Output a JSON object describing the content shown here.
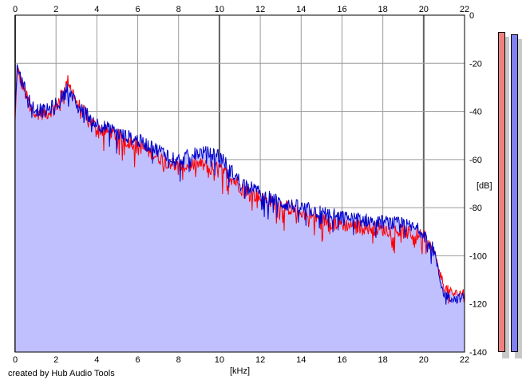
{
  "chart_data": {
    "type": "area",
    "xlabel": "[kHz]",
    "ylabel": "[dB]",
    "x_ticks": [
      0,
      2,
      4,
      6,
      8,
      10,
      12,
      14,
      16,
      18,
      20,
      22
    ],
    "y_ticks": [
      0,
      -20,
      -40,
      -60,
      -80,
      -100,
      -120,
      -140
    ],
    "xlim": [
      0,
      22
    ],
    "ylim": [
      -140,
      0
    ],
    "grid": true,
    "series": [
      {
        "color": "#ff0000",
        "x": [
          0,
          0.1,
          0.3,
          0.6,
          1.0,
          1.5,
          2.0,
          2.4,
          2.6,
          3.0,
          3.5,
          4.0,
          5.0,
          6.0,
          7.0,
          8.0,
          9.0,
          10.0,
          10.5,
          11.0,
          12.0,
          13.0,
          14.0,
          15.0,
          16.0,
          17.0,
          18.0,
          19.0,
          20.0,
          20.5,
          20.8,
          21.0,
          21.5,
          22.0
        ],
        "values": [
          -45,
          -22,
          -28,
          -35,
          -40,
          -41,
          -38,
          -31,
          -27,
          -36,
          -42,
          -47,
          -50,
          -54,
          -59,
          -63,
          -62,
          -64,
          -67,
          -71,
          -76,
          -79,
          -82,
          -85,
          -87,
          -88,
          -89,
          -90,
          -92,
          -98,
          -107,
          -113,
          -116,
          -115
        ]
      },
      {
        "color": "#0000cc",
        "x": [
          0,
          0.1,
          0.3,
          0.6,
          1.0,
          1.5,
          2.0,
          2.4,
          2.6,
          3.0,
          3.5,
          4.0,
          5.0,
          6.0,
          7.0,
          8.0,
          9.0,
          10.0,
          10.5,
          11.0,
          12.0,
          13.0,
          14.0,
          15.0,
          16.0,
          17.0,
          18.0,
          19.0,
          20.0,
          20.5,
          20.8,
          21.0,
          21.5,
          22.0
        ],
        "values": [
          -38,
          -21,
          -27,
          -34,
          -39,
          -40,
          -37,
          -33,
          -30,
          -38,
          -41,
          -45,
          -49,
          -52,
          -56,
          -60,
          -57,
          -58,
          -64,
          -69,
          -74,
          -78,
          -80,
          -82,
          -84,
          -85,
          -86,
          -87,
          -90,
          -97,
          -110,
          -116,
          -118,
          -117
        ]
      }
    ],
    "fill_color": "#c0c0ff",
    "meters": [
      {
        "color": "#f08080",
        "level_db": -7
      },
      {
        "color": "#8080f0",
        "level_db": -8
      }
    ]
  },
  "footer": {
    "credit": "created by Hub Audio Tools"
  }
}
